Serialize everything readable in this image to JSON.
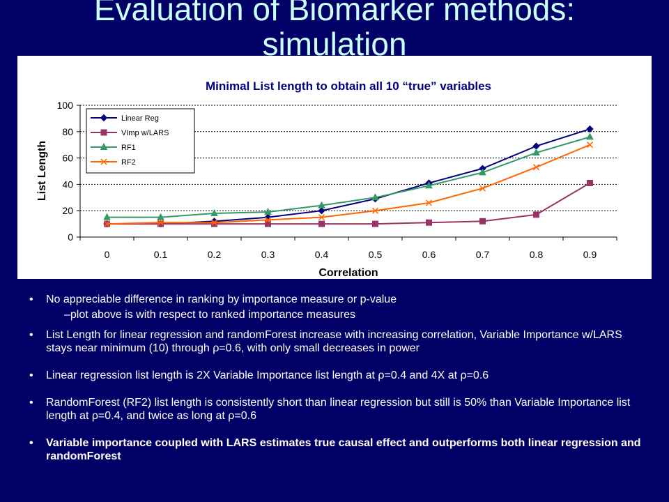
{
  "slide": {
    "title_line1": "Evaluation of Biomarker methods:",
    "title_line2": "simulation"
  },
  "chart_data": {
    "type": "line",
    "title": "Minimal List length to obtain all 10 “true” variables",
    "xlabel": "Correlation",
    "ylabel": "List Length",
    "categories": [
      "0",
      "0.1",
      "0.2",
      "0.3",
      "0.4",
      "0.5",
      "0.6",
      "0.7",
      "0.8",
      "0.9"
    ],
    "ylim": [
      0,
      100
    ],
    "yticks": [
      0,
      20,
      40,
      60,
      80,
      100
    ],
    "grid": "horizontal dashed",
    "legend_position": "top-left",
    "series": [
      {
        "name": "Linear Reg",
        "color": "#000080",
        "marker": "diamond",
        "values": [
          10,
          10,
          12,
          15,
          20,
          29,
          41,
          52,
          69,
          82
        ]
      },
      {
        "name": "VImp w/LARS",
        "color": "#993366",
        "marker": "square",
        "values": [
          10,
          10,
          10,
          10,
          10,
          10,
          11,
          12,
          17,
          41
        ]
      },
      {
        "name": "RF1",
        "color": "#339966",
        "marker": "triangle",
        "values": [
          15,
          15,
          18,
          19,
          24,
          30,
          39,
          49,
          64,
          76
        ]
      },
      {
        "name": "RF2",
        "color": "#ff6600",
        "marker": "x",
        "values": [
          10,
          11,
          11,
          13,
          15,
          20,
          26,
          37,
          53,
          70
        ]
      }
    ]
  },
  "bullets": {
    "b1": "No appreciable difference in ranking by importance measure or p-value",
    "b1_sub": "–plot above is with respect to ranked importance measures",
    "b2": "List Length for linear regression and randomForest increase with increasing correlation, Variable Importance w/LARS stays near minimum (10) through ρ=0.6, with only small decreases in power",
    "b3": "Linear regression list length is 2X Variable Importance list length at ρ=0.4 and 4X at ρ=0.6",
    "b4": "RandomForest (RF2) list length is consistently short than linear regression but still is 50% than Variable Importance list length at ρ=0.4, and twice as long at ρ=0.6",
    "b5": "Variable importance coupled with LARS estimates true causal effect and outperforms both linear regression and randomForest"
  }
}
